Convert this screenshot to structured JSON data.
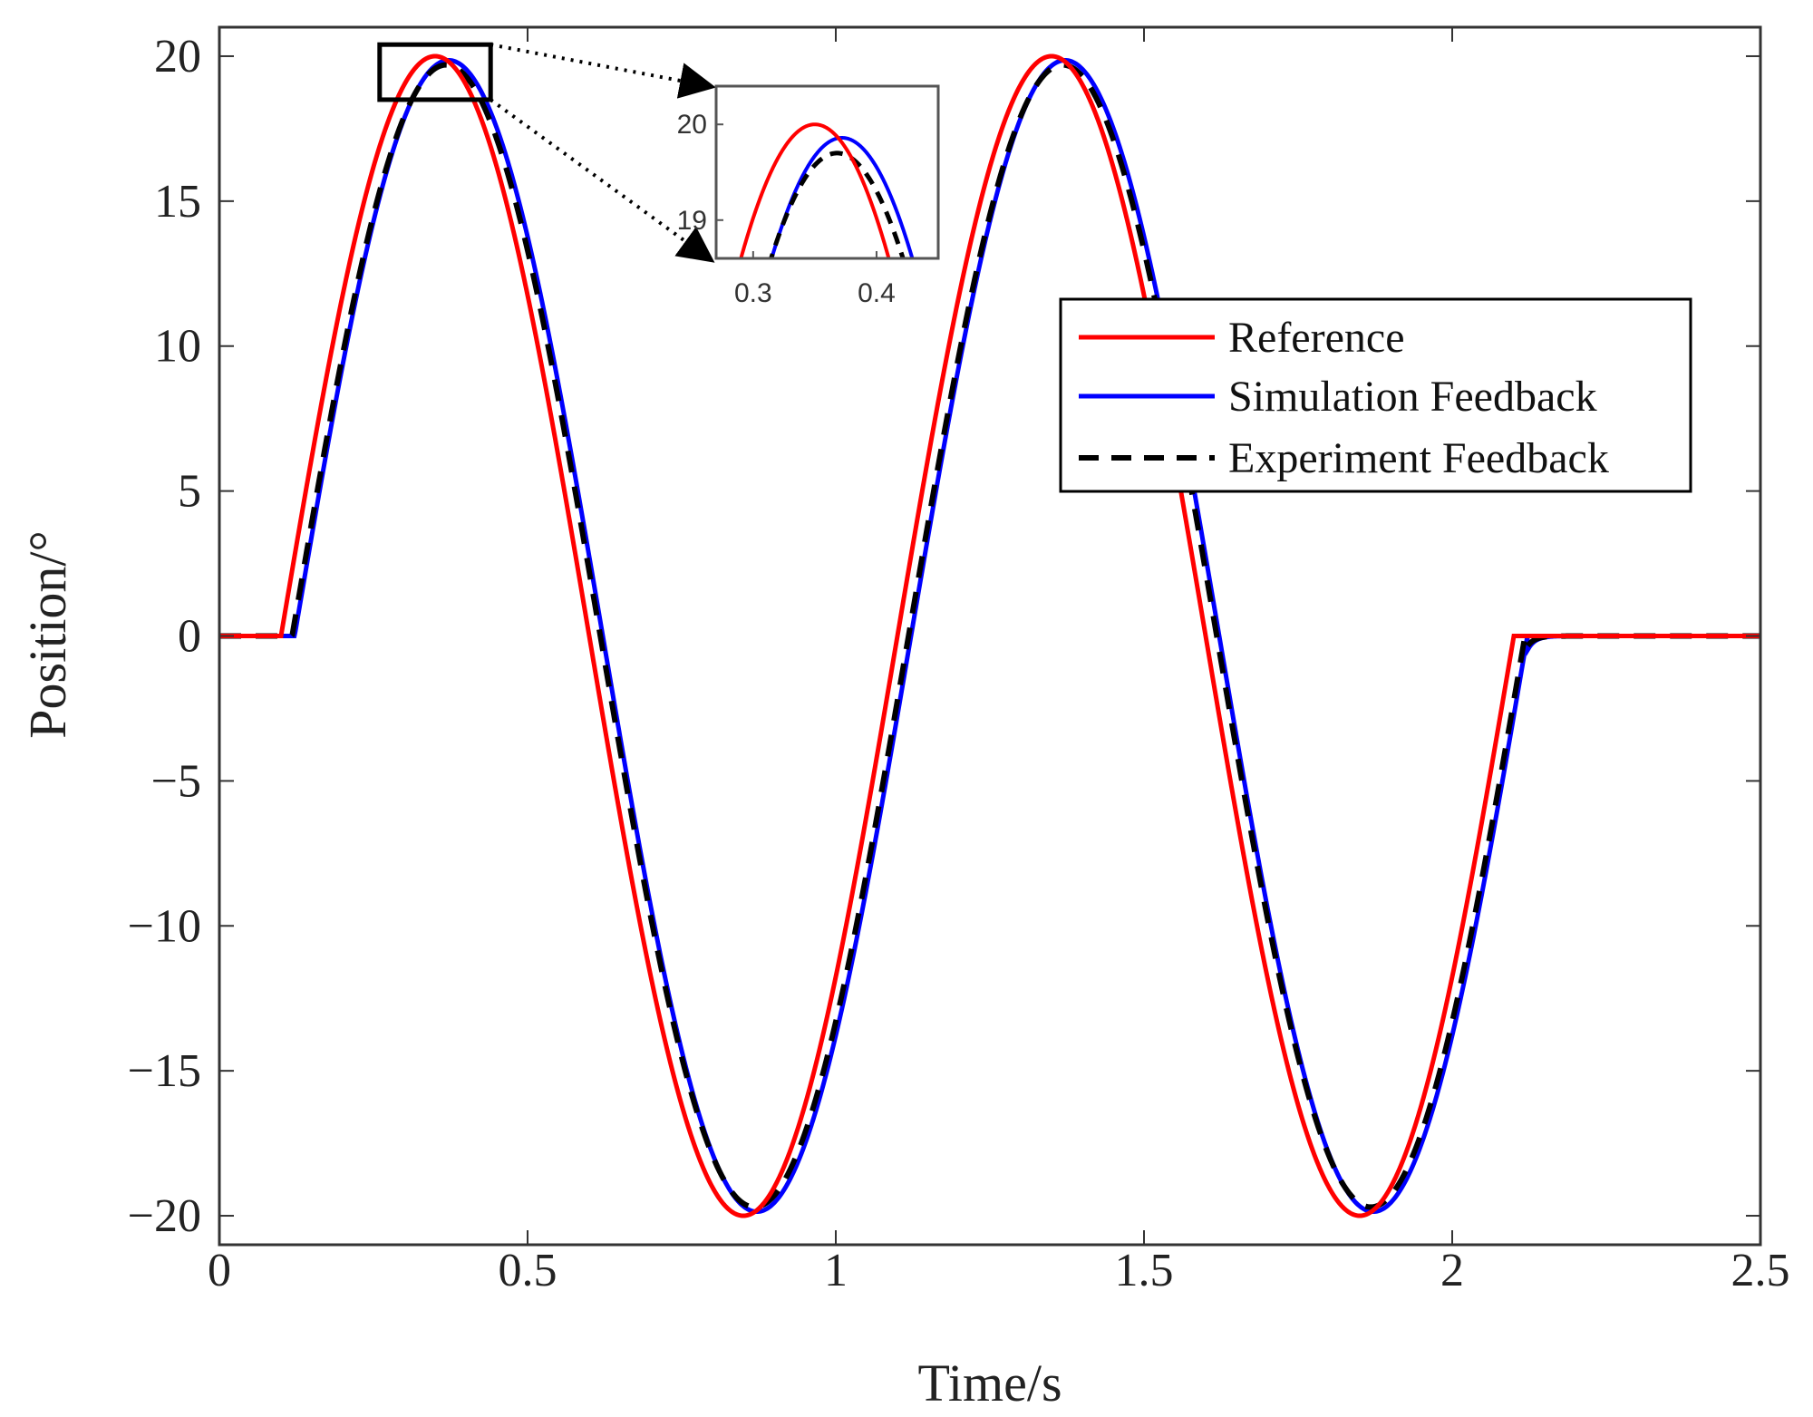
{
  "chart_data": {
    "type": "line",
    "title": "",
    "xlabel": "Time/s",
    "ylabel": "Position/°",
    "xlim": [
      0,
      2.5
    ],
    "ylim": [
      -21,
      21
    ],
    "xticks": [
      0,
      0.5,
      1,
      1.5,
      2,
      2.5
    ],
    "xtick_labels": [
      "0",
      "0.5",
      "1",
      "1.5",
      "2",
      "2.5"
    ],
    "yticks": [
      -20,
      -15,
      -10,
      -5,
      0,
      5,
      10,
      15,
      20
    ],
    "ytick_labels": [
      "−20",
      "−15",
      "−10",
      "−5",
      "0",
      "5",
      "10",
      "15",
      "20"
    ],
    "legend_position": "right",
    "signal": {
      "amplitude": 20,
      "frequency_hz": 1,
      "start_time": 0.1,
      "end_time": 2.1,
      "hold_value": 0
    },
    "series": [
      {
        "name": "Reference",
        "color": "#ff0000",
        "style": "solid",
        "delay": 0.0,
        "amp_scale": 1.0
      },
      {
        "name": "Simulation Feedback",
        "color": "#0000ff",
        "style": "solid",
        "delay": 0.022,
        "amp_scale": 0.993
      },
      {
        "name": "Experiment Feedback",
        "color": "#000000",
        "style": "dashed",
        "delay": 0.018,
        "amp_scale": 0.985
      }
    ],
    "inset": {
      "xlim": [
        0.27,
        0.45
      ],
      "ylim": [
        18.6,
        20.4
      ],
      "xticks": [
        0.3,
        0.4
      ],
      "xtick_labels": [
        "0.3",
        "0.4"
      ],
      "yticks": [
        19,
        20
      ],
      "ytick_labels": [
        "19",
        "20"
      ],
      "zoom_region": {
        "x": [
          0.26,
          0.44
        ],
        "y": [
          18.5,
          20.4
        ]
      }
    }
  }
}
